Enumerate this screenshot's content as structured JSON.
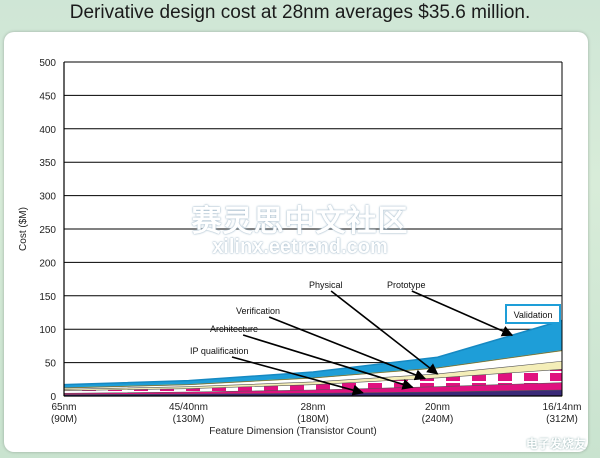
{
  "headline": "Derivative design cost at 28nm averages $35.6 million.",
  "watermark": {
    "cn": "赛灵思中文社区",
    "url": "xilinx.eetrend.com",
    "corner": "电子发烧友"
  },
  "chart_data": {
    "type": "area",
    "title": "",
    "xlabel": "Feature Dimension (Transistor Count)",
    "ylabel": "Cost ($M)",
    "ylim": [
      0,
      500
    ],
    "yticks": [
      0,
      50,
      100,
      150,
      200,
      250,
      300,
      350,
      400,
      450,
      500
    ],
    "grid": true,
    "categories": [
      {
        "line1": "65nm",
        "line2": "(90M)"
      },
      {
        "line1": "45/40nm",
        "line2": "(130M)"
      },
      {
        "line1": "28nm",
        "line2": "(180M)"
      },
      {
        "line1": "20nm",
        "line2": "(240M)"
      },
      {
        "line1": "16/14nm",
        "line2": "(312M)"
      }
    ],
    "series": [
      {
        "name": "IP qualification",
        "values": [
          2,
          3,
          4,
          6,
          9
        ],
        "color": "#3a2a78"
      },
      {
        "name": "Architecture",
        "values": [
          4,
          6,
          9,
          14,
          20
        ],
        "color": "#e0117f"
      },
      {
        "name": "Verification",
        "values": [
          8,
          11,
          17,
          27,
          40
        ],
        "color": "#e0117f"
      },
      {
        "name": "Physical",
        "values": [
          10,
          14,
          21,
          33,
          52
        ],
        "color": "#f4eeb8"
      },
      {
        "name": "Prototype",
        "values": [
          12,
          17,
          27,
          42,
          68
        ],
        "color": "#ffffff"
      },
      {
        "name": "Validation",
        "values": [
          17,
          23,
          36,
          58,
          113
        ],
        "color": "#1e9ed8"
      }
    ],
    "annotations": [
      {
        "label": "Physical",
        "target_x": 3.0,
        "target_y": 48
      },
      {
        "label": "Prototype",
        "target_x": 3.6,
        "target_y": 80
      },
      {
        "label": "Verification",
        "target_x": 2.9,
        "target_y": 30
      },
      {
        "label": "Architecture",
        "target_x": 2.8,
        "target_y": 22
      },
      {
        "label": "IP qualification",
        "target_x": 2.4,
        "target_y": 14
      },
      {
        "label": "Validation",
        "target_x": 3.7,
        "target_y": 98,
        "boxed": true
      }
    ]
  }
}
